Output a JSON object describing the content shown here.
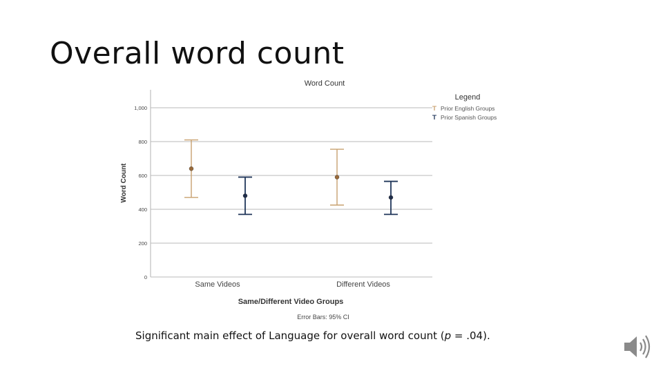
{
  "slide": {
    "title": "Overall word count",
    "caption": {
      "prefix": "Significant main effect of Language for overall word count (",
      "stat_italic": "p",
      "stat_rest": " = .04)."
    }
  },
  "chart_data": {
    "type": "scatter",
    "title": "Word Count",
    "xlabel": "Same/Different Video Groups",
    "ylabel": "Word Count",
    "ylim": [
      0,
      1000
    ],
    "yticks": [
      0,
      200,
      400,
      600,
      800,
      1000
    ],
    "ytick_labels": [
      "0",
      "200",
      "400",
      "600",
      "800",
      "1,000"
    ],
    "categories": [
      "Same Videos",
      "Different Videos"
    ],
    "grid": true,
    "legend": {
      "title": "Legend",
      "placement": "right"
    },
    "footnote": "Error Bars: 95% CI",
    "series": [
      {
        "name": "Prior English Groups",
        "color": "#c8a06e",
        "values": [
          640,
          590
        ],
        "ci_low": [
          470,
          425
        ],
        "ci_high": [
          810,
          755
        ]
      },
      {
        "name": "Prior Spanish Groups",
        "color": "#1f3559",
        "values": [
          480,
          470
        ],
        "ci_low": [
          370,
          370
        ],
        "ci_high": [
          590,
          565
        ]
      }
    ]
  },
  "icons": {
    "speaker": "speaker-icon"
  }
}
